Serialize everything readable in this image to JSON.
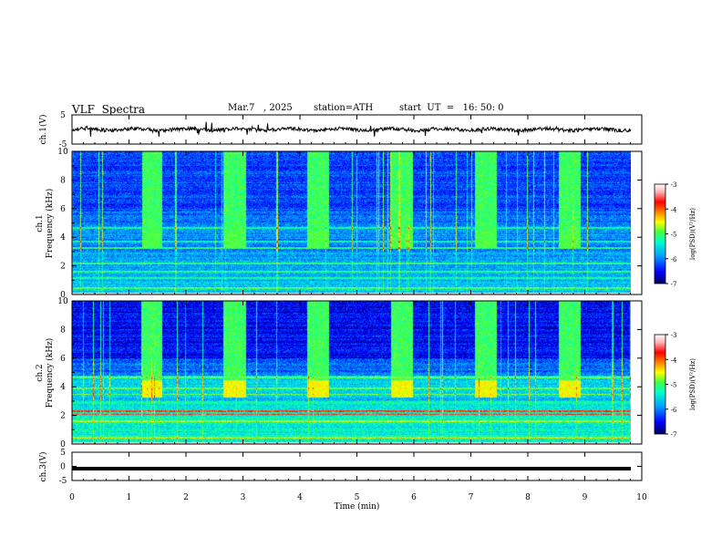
{
  "header": {
    "title": "VLF  Spectra",
    "date": "Mar.7   , 2025",
    "station": "station=ATH",
    "start": "start  UT  =   16: 50: 0"
  },
  "chart_data": [
    {
      "type": "line",
      "panel": "ch1-waveform",
      "ylabel": "ch.1(V)",
      "ylim": [
        -5,
        5
      ],
      "yticks": [
        5,
        -5
      ],
      "description_values": {
        "baseline_v": 0,
        "noise_amp_v": 0.6
      }
    },
    {
      "type": "heatmap",
      "panel": "ch1-spectrogram",
      "ylabel": "ch.1\nFrequency  (kHz)",
      "ylabel_line1": "ch.1",
      "ylabel_line2": "Frequency  (kHz)",
      "ylim": [
        0,
        10
      ],
      "yticks": [
        0,
        2,
        4,
        6,
        8,
        10
      ],
      "colorbar": {
        "label": "log(PSD)(V²/Hz)",
        "range": [
          -7,
          -3
        ],
        "ticks": [
          -3,
          -4,
          -5,
          -6,
          -7
        ]
      },
      "bursts_min": [
        [
          1.25,
          1.6
        ],
        [
          2.7,
          3.1
        ],
        [
          4.2,
          4.6
        ],
        [
          5.7,
          6.1
        ],
        [
          7.2,
          7.6
        ],
        [
          8.7,
          9.1
        ]
      ],
      "lines_khz": [
        0.5,
        1.2,
        1.6,
        2.2,
        3.3,
        3.7,
        4.7
      ]
    },
    {
      "type": "heatmap",
      "panel": "ch2-spectrogram",
      "ylabel": "ch.2\nFrequency  (kHz)",
      "ylabel_line1": "ch.2",
      "ylabel_line2": "Frequency  (kHz)",
      "ylim": [
        0,
        10
      ],
      "yticks": [
        0,
        2,
        4,
        6,
        8,
        10
      ],
      "colorbar": {
        "label": "log(PSD)(V²/Hz)",
        "range": [
          -7,
          -3
        ],
        "ticks": [
          -3,
          -4,
          -5,
          -6,
          -7
        ]
      },
      "bursts_min": [
        [
          1.25,
          1.6
        ],
        [
          2.7,
          3.1
        ],
        [
          4.2,
          4.6
        ],
        [
          5.7,
          6.1
        ],
        [
          7.2,
          7.6
        ],
        [
          8.7,
          9.1
        ]
      ],
      "lines_khz": [
        0.5,
        1.6,
        2.1,
        2.3,
        3.5,
        3.9,
        4.7
      ]
    },
    {
      "type": "line",
      "panel": "ch3-waveform",
      "ylabel": "ch.3(V)",
      "ylim": [
        -5,
        5
      ],
      "yticks": [
        5,
        0,
        -5
      ],
      "xlabel": "Time  (min)",
      "xlim": [
        0,
        10
      ],
      "xticks": [
        0,
        1,
        2,
        3,
        4,
        5,
        6,
        7,
        8,
        9,
        10
      ],
      "description_values": {
        "baseline_v": -0.8
      }
    }
  ],
  "colors": {
    "scale": [
      "#000060",
      "#0000ff",
      "#00a0ff",
      "#00ffcc",
      "#40ff40",
      "#ffff00",
      "#ff8000",
      "#ff0000",
      "#ffb0b0",
      "#ffffff"
    ]
  }
}
